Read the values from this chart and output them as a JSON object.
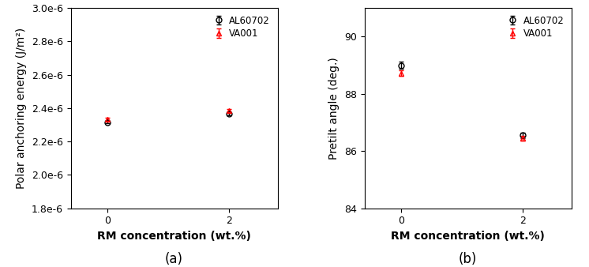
{
  "panel_a": {
    "xlabel": "RM concentration (wt.%)",
    "ylabel": "Polar anchoring energy (J/m²)",
    "label_a": "(a)",
    "ylim": [
      1.8e-06,
      3e-06
    ],
    "yticks": [
      1.8e-06,
      2e-06,
      2.2e-06,
      2.4e-06,
      2.6e-06,
      2.8e-06,
      3e-06
    ],
    "xticks": [
      0,
      2
    ],
    "xlim": [
      -0.6,
      2.8
    ],
    "series": {
      "AL60702": {
        "x": [
          0,
          2
        ],
        "y": [
          2.315e-06,
          2.365e-06
        ],
        "yerr": [
          7e-09,
          7e-09
        ],
        "color": "black",
        "marker": "o",
        "label": "AL60702"
      },
      "VA001": {
        "x": [
          0,
          2
        ],
        "y": [
          2.335e-06,
          2.385e-06
        ],
        "yerr": [
          9e-09,
          9e-09
        ],
        "color": "red",
        "marker": "^",
        "label": "VA001"
      }
    }
  },
  "panel_b": {
    "xlabel": "RM concentration (wt.%)",
    "ylabel": "Pretilt angle (deg.)",
    "label_b": "(b)",
    "ylim": [
      84,
      91
    ],
    "yticks": [
      84,
      86,
      88,
      90
    ],
    "xticks": [
      0,
      2
    ],
    "xlim": [
      -0.6,
      2.8
    ],
    "series": {
      "AL60702": {
        "x": [
          0,
          2
        ],
        "y": [
          89.0,
          86.55
        ],
        "yerr": [
          0.12,
          0.1
        ],
        "color": "black",
        "marker": "o",
        "label": "AL60702"
      },
      "VA001": {
        "x": [
          0,
          2
        ],
        "y": [
          88.72,
          86.45
        ],
        "yerr": [
          0.09,
          0.08
        ],
        "color": "red",
        "marker": "^",
        "label": "VA001"
      }
    }
  },
  "legend_fontsize": 8.5,
  "tick_labelsize": 9,
  "axis_labelsize": 10,
  "marker_size": 5,
  "capsize": 2.5,
  "elinewidth": 1.0,
  "label_fontsize": 12
}
